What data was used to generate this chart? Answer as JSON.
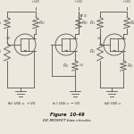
{
  "title": "Figure  10-49",
  "subtitle": "DE-MOSFET bias circuits.",
  "background_color": "#ede8dd",
  "line_color": "#555555",
  "text_color": "#333333",
  "fig_width": 1.5,
  "fig_height": 1.5,
  "dpi": 100
}
